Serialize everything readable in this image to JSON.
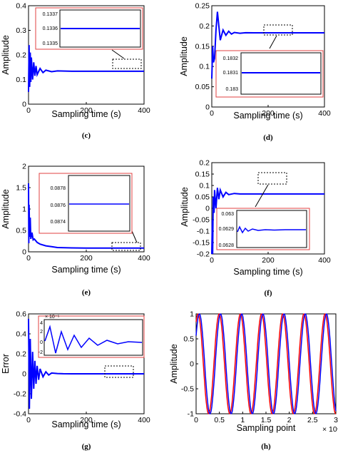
{
  "chart_data": [
    {
      "type": "line",
      "panel_label": "(c)",
      "xlabel": "Sampling time (s)",
      "ylabel": "Amplitude",
      "xlim": [
        0,
        400
      ],
      "ylim": [
        0,
        0.4
      ],
      "xticks": [
        "0",
        "200",
        "400"
      ],
      "yticks": [
        "0",
        "0.1",
        "0.2",
        "0.3",
        "0.4"
      ],
      "series": [
        {
          "color": "#0000ff",
          "x": [
            0,
            2,
            4,
            6,
            8,
            10,
            14,
            18,
            22,
            26,
            30,
            40,
            50,
            60,
            80,
            100,
            150,
            200,
            300,
            400
          ],
          "y": [
            0.05,
            0.24,
            0.07,
            0.21,
            0.09,
            0.19,
            0.1,
            0.17,
            0.115,
            0.155,
            0.12,
            0.145,
            0.128,
            0.138,
            0.132,
            0.135,
            0.1336,
            0.1336,
            0.1336,
            0.1336
          ]
        }
      ],
      "inset": {
        "ylim": [
          0.1335,
          0.1337
        ],
        "yticks": [
          "0.1335",
          "0.1336",
          "0.1337"
        ],
        "value": 0.1336
      },
      "grid": false
    },
    {
      "type": "line",
      "panel_label": "(d)",
      "xlabel": "Sampling time (s)",
      "ylabel": "Amplitude",
      "xlim": [
        0,
        400
      ],
      "ylim": [
        0,
        0.25
      ],
      "xticks": [
        "0",
        "200",
        "400"
      ],
      "yticks": [
        "0",
        "0.05",
        "0.1",
        "0.15",
        "0.2",
        "0.25"
      ],
      "series": [
        {
          "color": "#0000ff",
          "x": [
            0,
            3,
            6,
            10,
            15,
            20,
            25,
            30,
            40,
            50,
            60,
            70,
            80,
            100,
            120,
            150,
            200,
            300,
            400
          ],
          "y": [
            0.07,
            0.15,
            0.11,
            0.12,
            0.19,
            0.235,
            0.2,
            0.165,
            0.19,
            0.177,
            0.187,
            0.18,
            0.184,
            0.182,
            0.1832,
            0.1831,
            0.1831,
            0.1831,
            0.1831
          ]
        }
      ],
      "inset": {
        "ylim": [
          0.183,
          0.1832
        ],
        "yticks": [
          "0.183",
          "0.1831",
          "0.1832"
        ],
        "value": 0.1831
      },
      "grid": false
    },
    {
      "type": "line",
      "panel_label": "(e)",
      "xlabel": "Sampling time (s)",
      "ylabel": "Amplitude",
      "xlim": [
        0,
        400
      ],
      "ylim": [
        0,
        2
      ],
      "xticks": [
        "0",
        "200",
        "400"
      ],
      "yticks": [
        "0",
        "0.5",
        "1",
        "1.5",
        "2"
      ],
      "series": [
        {
          "color": "#0000ff",
          "x": [
            0,
            1,
            2,
            4,
            6,
            8,
            12,
            16,
            20,
            30,
            40,
            60,
            80,
            100,
            150,
            200,
            300,
            400
          ],
          "y": [
            1.6,
            0.2,
            1.1,
            0.35,
            0.8,
            0.3,
            0.45,
            0.28,
            0.3,
            0.22,
            0.18,
            0.14,
            0.12,
            0.1,
            0.092,
            0.0885,
            0.0876,
            0.0876
          ]
        }
      ],
      "inset": {
        "ylim": [
          0.0874,
          0.0878
        ],
        "yticks": [
          "0.0874",
          "0.0876",
          "0.0878"
        ],
        "value": 0.0876
      },
      "grid": false
    },
    {
      "type": "line",
      "panel_label": "(f)",
      "xlabel": "Sampling time (s)",
      "ylabel": "Amplitude",
      "xlim": [
        0,
        400
      ],
      "ylim": [
        -0.2,
        0.2
      ],
      "xticks": [
        "0",
        "200",
        "400"
      ],
      "yticks": [
        "-0.2",
        "-0.15",
        "-0.1",
        "-0.05",
        "0",
        "0.05",
        "0.1",
        "0.15",
        "0.2"
      ],
      "series": [
        {
          "color": "#0000ff",
          "x": [
            0,
            2,
            3,
            5,
            8,
            10,
            15,
            20,
            25,
            30,
            40,
            50,
            60,
            80,
            100,
            150,
            200,
            300,
            400
          ],
          "y": [
            -0.2,
            -0.05,
            -0.2,
            0.05,
            -0.02,
            0.08,
            0.0,
            0.09,
            0.04,
            0.08,
            0.05,
            0.07,
            0.06,
            0.065,
            0.0628,
            0.0629,
            0.0629,
            0.0629,
            0.0629
          ]
        }
      ],
      "inset": {
        "ylim": [
          0.0628,
          0.063
        ],
        "yticks": [
          "0.0628",
          "0.0629",
          "0.063"
        ],
        "value": 0.0629
      },
      "grid": false
    },
    {
      "type": "line",
      "panel_label": "(g)",
      "xlabel": "Sampling time (s)",
      "ylabel": "Error",
      "xlim": [
        0,
        400
      ],
      "ylim": [
        -0.4,
        0.6
      ],
      "xticks": [
        "0",
        "200",
        "400"
      ],
      "yticks": [
        "-0.4",
        "-0.2",
        "0",
        "0.2",
        "0.4",
        "0.6"
      ],
      "series": [
        {
          "color": "#0000ff",
          "x": [
            0,
            3,
            6,
            10,
            14,
            18,
            22,
            26,
            30,
            35,
            40,
            50,
            60,
            70,
            80,
            100,
            120,
            150,
            200,
            300,
            400
          ],
          "y": [
            0.55,
            -0.35,
            0.35,
            -0.25,
            0.22,
            -0.15,
            0.13,
            -0.1,
            0.08,
            -0.06,
            0.05,
            -0.03,
            0.02,
            -0.012,
            0.008,
            0.003,
            0.001,
            0.0,
            0.0,
            0.0,
            0.0
          ]
        }
      ],
      "inset": {
        "ylim": [
          -2,
          4
        ],
        "yticks": [
          "-2",
          "0",
          "2",
          "4"
        ],
        "exponent": "× 10⁻⁵"
      },
      "grid": false
    },
    {
      "type": "line",
      "panel_label": "(h)",
      "xlabel": "Sampling point",
      "ylabel": "Amplitude",
      "xlim": [
        0,
        3
      ],
      "ylim": [
        -1,
        1
      ],
      "x_multiplier": "× 10⁴",
      "xticks": [
        "0",
        "0.5",
        "1",
        "1.5",
        "2",
        "2.5",
        "3"
      ],
      "yticks": [
        "-1",
        "-0.5",
        "0",
        "0.5",
        "1"
      ],
      "series": [
        {
          "color": "#ff0000",
          "periods": 6.6,
          "phase": 1.0
        },
        {
          "color": "#0000ff",
          "periods": 6.6,
          "phase": 0.6
        }
      ],
      "grid": false
    }
  ]
}
